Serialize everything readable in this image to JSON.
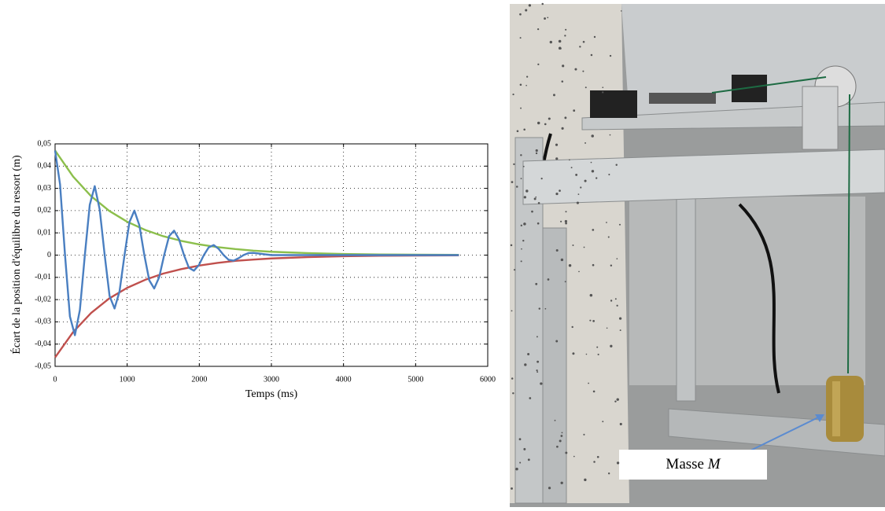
{
  "chart_data": {
    "type": "line",
    "ylabel": "Écart de la position d'équilibre du ressort (m)",
    "xlabel": "Temps (ms)",
    "xlim": [
      0,
      6000
    ],
    "xticks": [
      0,
      1000,
      2000,
      3000,
      4000,
      5000,
      6000
    ],
    "ylim": [
      -0.05,
      0.05
    ],
    "yticks": [
      {
        "value": 0.05,
        "label": "0,05"
      },
      {
        "value": 0.04,
        "label": "0,04"
      },
      {
        "value": 0.03,
        "label": "0,03"
      },
      {
        "value": 0.02,
        "label": "0,02"
      },
      {
        "value": 0.01,
        "label": "0,01"
      },
      0,
      {
        "value": -0.01,
        "label": "-0,01"
      },
      {
        "value": -0.02,
        "label": "-0,02"
      },
      {
        "value": -0.03,
        "label": "-0,03"
      },
      {
        "value": -0.04,
        "label": "-0,04"
      },
      {
        "value": -0.05,
        "label": "-0,05"
      }
    ],
    "grid": true,
    "series": [
      {
        "color": "#8cbf4c",
        "x": [
          0,
          250,
          500,
          750,
          1000,
          1250,
          1500,
          1750,
          2000,
          2250,
          2500,
          2750,
          3000,
          3500,
          4000,
          4500,
          5000,
          5600
        ],
        "values": [
          0.047,
          0.0353,
          0.0265,
          0.0199,
          0.015,
          0.0113,
          0.0085,
          0.0064,
          0.0048,
          0.0036,
          0.0027,
          0.002,
          0.0015,
          0.0009,
          0.0005,
          0.0003,
          0.0002,
          0.0001
        ]
      },
      {
        "color": "#c0504d",
        "x": [
          0,
          250,
          500,
          750,
          1000,
          1250,
          1500,
          1750,
          2000,
          2250,
          2500,
          2750,
          3000,
          3500,
          4000,
          4500,
          5000,
          5600
        ],
        "values": [
          -0.046,
          -0.0346,
          -0.026,
          -0.0195,
          -0.0147,
          -0.0111,
          -0.0083,
          -0.0063,
          -0.0047,
          -0.0035,
          -0.0026,
          -0.002,
          -0.0015,
          -0.0009,
          -0.0005,
          -0.0003,
          -0.0002,
          -0.0001
        ]
      },
      {
        "color": "#4a7fc1",
        "x": [
          0,
          69,
          138,
          206,
          275,
          344,
          413,
          481,
          550,
          619,
          688,
          756,
          825,
          894,
          963,
          1031,
          1100,
          1169,
          1238,
          1306,
          1375,
          1444,
          1513,
          1581,
          1650,
          1719,
          1788,
          1856,
          1925,
          1994,
          2063,
          2131,
          2200,
          2269,
          2338,
          2406,
          2475,
          2544,
          2613,
          2681,
          2750,
          3000,
          4000,
          5000,
          5600
        ],
        "values": [
          0.047,
          0.0318,
          0,
          -0.0276,
          -0.036,
          -0.0247,
          0,
          0.0226,
          0.031,
          0.0205,
          0,
          -0.0184,
          -0.024,
          -0.0163,
          0,
          0.0148,
          0.02,
          0.0134,
          0,
          -0.0113,
          -0.015,
          -0.0099,
          0,
          0.0085,
          0.011,
          0.0071,
          0,
          -0.0057,
          -0.007,
          -0.0045,
          0,
          0.0035,
          0.0045,
          0.0028,
          0,
          -0.0021,
          -0.0025,
          -0.0014,
          0,
          0.0009,
          0.001,
          0,
          0,
          0,
          0
        ]
      }
    ]
  },
  "photo": {
    "label_text": "Masse",
    "label_symbol": "M"
  }
}
